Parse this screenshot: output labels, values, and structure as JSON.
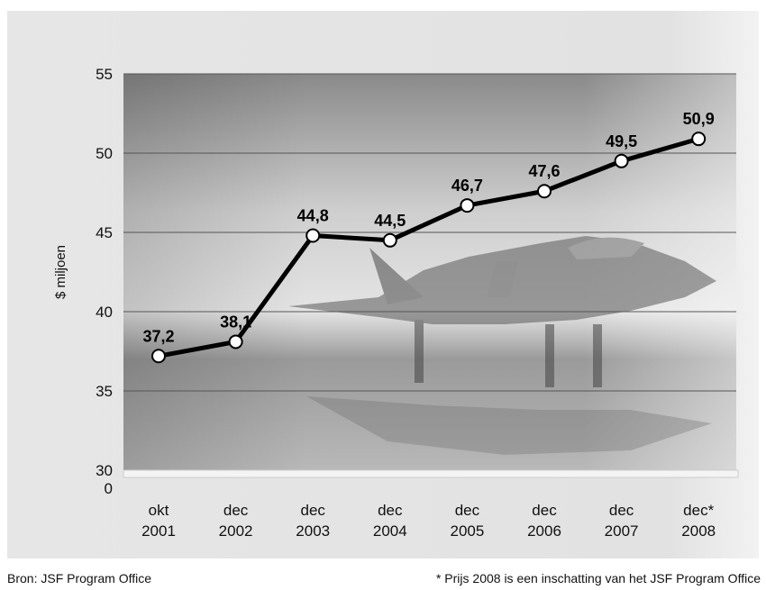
{
  "chart_data": {
    "type": "line",
    "title": "",
    "xlabel": "",
    "ylabel": "$ miljoen",
    "ylim": [
      30,
      55
    ],
    "yticks": [
      30,
      35,
      40,
      45,
      50,
      55
    ],
    "y_break_label": "0",
    "grid": true,
    "categories": [
      [
        "okt",
        "2001"
      ],
      [
        "dec",
        "2002"
      ],
      [
        "dec",
        "2003"
      ],
      [
        "dec",
        "2004"
      ],
      [
        "dec",
        "2005"
      ],
      [
        "dec",
        "2006"
      ],
      [
        "dec",
        "2007"
      ],
      [
        "dec*",
        "2008"
      ]
    ],
    "series": [
      {
        "values": [
          37.2,
          38.1,
          44.8,
          44.5,
          46.7,
          47.6,
          49.5,
          50.9
        ],
        "labels": [
          "37,2",
          "38,1",
          "44,8",
          "44,5",
          "46,7",
          "47,6",
          "49,5",
          "50,9"
        ]
      }
    ],
    "colors": {
      "line": "#000000",
      "marker_fill": "#ffffff",
      "grid": "#555555"
    }
  },
  "source": "Bron: JSF Program Office",
  "footnote": "* Prijs 2008 is een inschatting van het JSF Program Office"
}
